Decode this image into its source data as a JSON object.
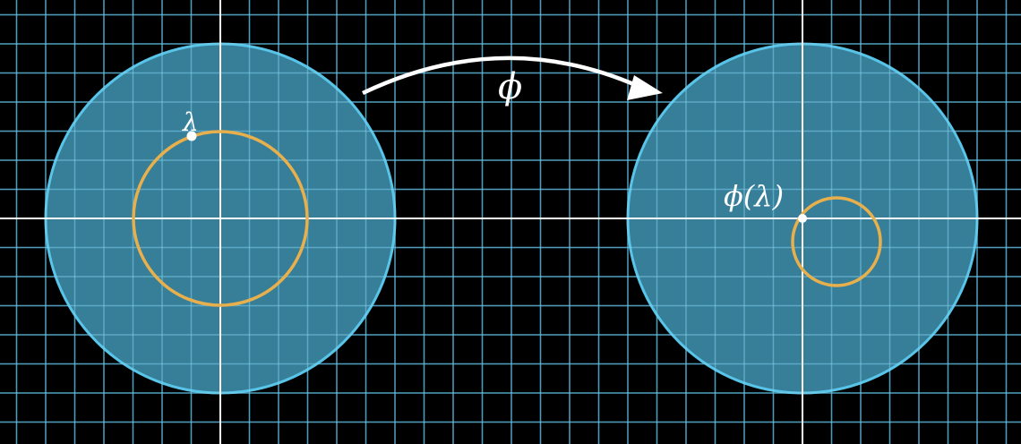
{
  "labels": {
    "map_symbol": "ϕ",
    "point_symbol": "λ",
    "image_point": "ϕ(λ)"
  },
  "colors": {
    "background": "#000000",
    "grid": "#1f6f8f",
    "axis": "#ffffff",
    "disk_fill": "#3f8fae",
    "disk_stroke": "#58c4e8",
    "circle": "#e8b04c",
    "point": "#ffffff",
    "arrow": "#ffffff"
  }
}
